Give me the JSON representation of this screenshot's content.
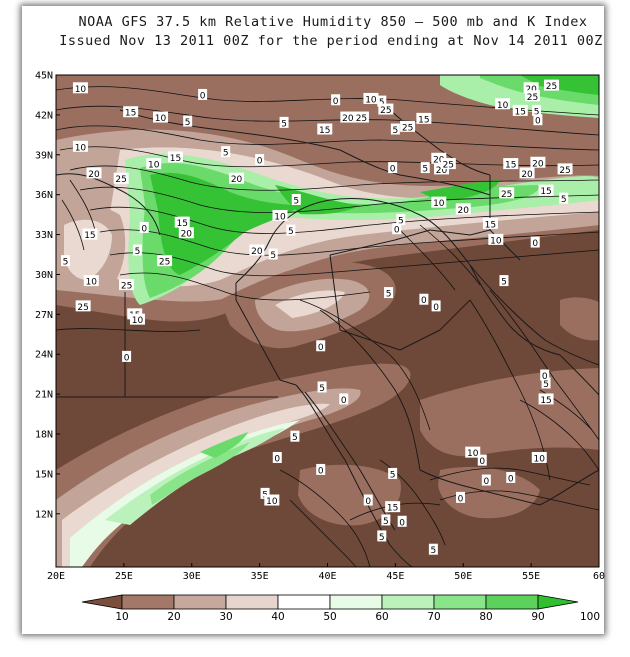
{
  "title_line1": "NOAA GFS 37.5 km Relative Humidity 850 — 500 mb and K Index",
  "title_line2": "Issued Nov 13 2011 00Z for the period ending at Nov 14 2011 00Z",
  "axes": {
    "lon_labels": [
      "20E",
      "25E",
      "30E",
      "35E",
      "40E",
      "45E",
      "50E",
      "55E",
      "60"
    ],
    "lat_labels": [
      "45N",
      "42N",
      "39N",
      "36N",
      "33N",
      "30N",
      "27N",
      "24N",
      "21N",
      "18N",
      "15N",
      "12N"
    ]
  },
  "legend": {
    "labels": [
      "10",
      "20",
      "30",
      "40",
      "50",
      "60",
      "70",
      "80",
      "90",
      "100"
    ],
    "colors": [
      "#7a4e3c",
      "#a37868",
      "#c6a89c",
      "#e6d5cd",
      "#ffffff",
      "#e7fbe7",
      "#bbf2bb",
      "#8ae58a",
      "#5cd25c",
      "#2fbf2f"
    ]
  },
  "colors": {
    "dark_brown": "#6e4838",
    "mid_brown": "#9a6f60",
    "light_brown": "#c2a498",
    "pale": "#ead9d1",
    "light_green": "#a9eea9",
    "mid_green": "#6ada6a",
    "bright_green": "#35c235"
  },
  "contour_labels": [
    {
      "t": "10",
      "lon": 21.8,
      "lat": 44.0
    },
    {
      "t": "0",
      "lon": 30.8,
      "lat": 43.5
    },
    {
      "t": "15",
      "lon": 25.5,
      "lat": 42.2
    },
    {
      "t": "10",
      "lon": 27.7,
      "lat": 41.8
    },
    {
      "t": "5",
      "lon": 29.7,
      "lat": 41.5
    },
    {
      "t": "5",
      "lon": 36.8,
      "lat": 41.4
    },
    {
      "t": "0",
      "lon": 40.6,
      "lat": 43.1
    },
    {
      "t": "10",
      "lon": 43.2,
      "lat": 43.2
    },
    {
      "t": "5",
      "lon": 44.0,
      "lat": 43.0
    },
    {
      "t": "25",
      "lon": 44.3,
      "lat": 42.4
    },
    {
      "t": "20",
      "lon": 41.5,
      "lat": 41.8
    },
    {
      "t": "25",
      "lon": 42.5,
      "lat": 41.8
    },
    {
      "t": "15",
      "lon": 39.8,
      "lat": 40.9
    },
    {
      "t": "5",
      "lon": 45.0,
      "lat": 40.9
    },
    {
      "t": "25",
      "lon": 45.9,
      "lat": 41.1
    },
    {
      "t": "15",
      "lon": 47.1,
      "lat": 41.7
    },
    {
      "t": "20",
      "lon": 55.0,
      "lat": 44.0
    },
    {
      "t": "25",
      "lon": 55.1,
      "lat": 43.4
    },
    {
      "t": "25",
      "lon": 56.5,
      "lat": 44.2
    },
    {
      "t": "10",
      "lon": 52.9,
      "lat": 42.8
    },
    {
      "t": "15",
      "lon": 54.2,
      "lat": 42.3
    },
    {
      "t": "5",
      "lon": 55.4,
      "lat": 42.3
    },
    {
      "t": "0",
      "lon": 55.5,
      "lat": 41.6
    },
    {
      "t": "10",
      "lon": 21.8,
      "lat": 39.6
    },
    {
      "t": "20",
      "lon": 22.8,
      "lat": 37.6
    },
    {
      "t": "25",
      "lon": 24.8,
      "lat": 37.2
    },
    {
      "t": "15",
      "lon": 28.8,
      "lat": 38.8
    },
    {
      "t": "10",
      "lon": 27.2,
      "lat": 38.3
    },
    {
      "t": "5",
      "lon": 32.5,
      "lat": 39.2
    },
    {
      "t": "0",
      "lon": 35.0,
      "lat": 38.6
    },
    {
      "t": "20",
      "lon": 33.3,
      "lat": 37.2
    },
    {
      "t": "20",
      "lon": 48.2,
      "lat": 38.7
    },
    {
      "t": "20",
      "lon": 48.4,
      "lat": 37.9
    },
    {
      "t": "25",
      "lon": 48.9,
      "lat": 38.3
    },
    {
      "t": "5",
      "lon": 47.2,
      "lat": 38.0
    },
    {
      "t": "0",
      "lon": 44.8,
      "lat": 38.0
    },
    {
      "t": "15",
      "lon": 53.5,
      "lat": 38.3
    },
    {
      "t": "20",
      "lon": 55.5,
      "lat": 38.4
    },
    {
      "t": "20",
      "lon": 54.7,
      "lat": 37.6
    },
    {
      "t": "25",
      "lon": 57.5,
      "lat": 37.9
    },
    {
      "t": "25",
      "lon": 53.2,
      "lat": 36.1
    },
    {
      "t": "15",
      "lon": 56.1,
      "lat": 36.3
    },
    {
      "t": "5",
      "lon": 57.4,
      "lat": 35.7
    },
    {
      "t": "10",
      "lon": 48.2,
      "lat": 35.4
    },
    {
      "t": "20",
      "lon": 50.0,
      "lat": 34.9
    },
    {
      "t": "10",
      "lon": 36.5,
      "lat": 34.4
    },
    {
      "t": "5",
      "lon": 37.7,
      "lat": 35.6
    },
    {
      "t": "5",
      "lon": 45.4,
      "lat": 34.1
    },
    {
      "t": "0",
      "lon": 45.1,
      "lat": 33.4
    },
    {
      "t": "15",
      "lon": 52.0,
      "lat": 33.8
    },
    {
      "t": "10",
      "lon": 52.4,
      "lat": 32.6
    },
    {
      "t": "0",
      "lon": 55.3,
      "lat": 32.4
    },
    {
      "t": "15",
      "lon": 29.3,
      "lat": 33.9
    },
    {
      "t": "20",
      "lon": 29.6,
      "lat": 33.1
    },
    {
      "t": "0",
      "lon": 26.5,
      "lat": 33.5
    },
    {
      "t": "15",
      "lon": 22.5,
      "lat": 33.0
    },
    {
      "t": "5",
      "lon": 26.0,
      "lat": 31.8
    },
    {
      "t": "25",
      "lon": 28.0,
      "lat": 31.0
    },
    {
      "t": "20",
      "lon": 34.8,
      "lat": 31.8
    },
    {
      "t": "5",
      "lon": 36.0,
      "lat": 31.5
    },
    {
      "t": "5",
      "lon": 37.3,
      "lat": 33.3
    },
    {
      "t": "5",
      "lon": 20.7,
      "lat": 31.0
    },
    {
      "t": "10",
      "lon": 22.6,
      "lat": 29.5
    },
    {
      "t": "25",
      "lon": 25.2,
      "lat": 29.2
    },
    {
      "t": "25",
      "lon": 22.0,
      "lat": 27.6
    },
    {
      "t": "15",
      "lon": 25.8,
      "lat": 27.0
    },
    {
      "t": "10",
      "lon": 26.0,
      "lat": 26.6
    },
    {
      "t": "0",
      "lon": 25.2,
      "lat": 23.8
    },
    {
      "t": "5",
      "lon": 44.5,
      "lat": 28.6
    },
    {
      "t": "0",
      "lon": 47.1,
      "lat": 28.1
    },
    {
      "t": "0",
      "lon": 48.0,
      "lat": 27.6
    },
    {
      "t": "5",
      "lon": 53.0,
      "lat": 29.5
    },
    {
      "t": "0",
      "lon": 39.5,
      "lat": 24.6
    },
    {
      "t": "5",
      "lon": 39.6,
      "lat": 21.5
    },
    {
      "t": "0",
      "lon": 41.2,
      "lat": 20.6
    },
    {
      "t": "5",
      "lon": 37.6,
      "lat": 17.8
    },
    {
      "t": "0",
      "lon": 36.3,
      "lat": 16.2
    },
    {
      "t": "0",
      "lon": 39.5,
      "lat": 15.3
    },
    {
      "t": "5",
      "lon": 44.8,
      "lat": 15.0
    },
    {
      "t": "5",
      "lon": 35.4,
      "lat": 13.5
    },
    {
      "t": "10",
      "lon": 35.9,
      "lat": 13.0
    },
    {
      "t": "0",
      "lon": 43.0,
      "lat": 13.0
    },
    {
      "t": "15",
      "lon": 44.8,
      "lat": 12.5
    },
    {
      "t": "5",
      "lon": 44.3,
      "lat": 11.5
    },
    {
      "t": "0",
      "lon": 45.5,
      "lat": 11.4
    },
    {
      "t": "5",
      "lon": 44.0,
      "lat": 10.3
    },
    {
      "t": "5",
      "lon": 47.8,
      "lat": 9.3
    },
    {
      "t": "0",
      "lon": 49.8,
      "lat": 13.2
    },
    {
      "t": "10",
      "lon": 50.7,
      "lat": 16.6
    },
    {
      "t": "0",
      "lon": 51.4,
      "lat": 16.0
    },
    {
      "t": "0",
      "lon": 53.5,
      "lat": 14.7
    },
    {
      "t": "0",
      "lon": 51.7,
      "lat": 14.5
    },
    {
      "t": "10",
      "lon": 55.6,
      "lat": 16.2
    },
    {
      "t": "15",
      "lon": 56.1,
      "lat": 20.6
    },
    {
      "t": "5",
      "lon": 56.1,
      "lat": 21.8
    },
    {
      "t": "0",
      "lon": 56.0,
      "lat": 22.4
    }
  ]
}
